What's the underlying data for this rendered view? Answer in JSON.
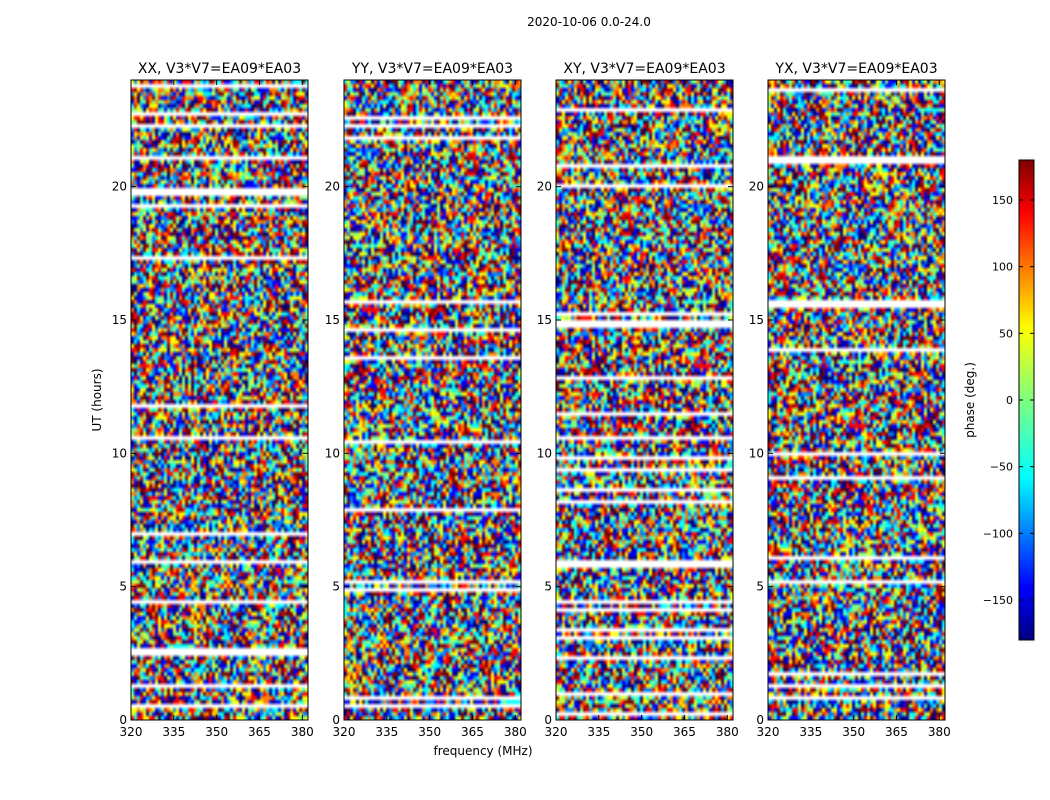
{
  "figure": {
    "suptitle": "2020-10-06 0.0-24.0",
    "xlabel": "frequency (MHz)",
    "ylabel": "UT (hours)"
  },
  "colorbar": {
    "label": "phase (deg.)",
    "ticks": [
      150,
      100,
      50,
      0,
      -50,
      -100,
      -150
    ],
    "tick_labels": [
      "150",
      "100",
      "50",
      "0",
      "−50",
      "−100",
      "−150"
    ],
    "range": [
      -180,
      180
    ],
    "colormap": "jet",
    "colors": [
      "#00007f",
      "#0000ff",
      "#007fff",
      "#00ffff",
      "#7fff7f",
      "#ffff00",
      "#ff7f00",
      "#ff0000",
      "#7f0000"
    ]
  },
  "chart_data": [
    {
      "type": "heatmap",
      "title": "XX, V3*V7=EA09*EA03",
      "x_ticks": [
        320,
        335,
        350,
        365,
        380
      ],
      "y_ticks": [
        0,
        5,
        10,
        15,
        20
      ],
      "xlim": [
        320,
        382
      ],
      "ylim": [
        0,
        24
      ],
      "z_range": [
        -180,
        180
      ]
    },
    {
      "type": "heatmap",
      "title": "YY, V3*V7=EA09*EA03",
      "x_ticks": [
        320,
        335,
        350,
        365,
        380
      ],
      "y_ticks": [
        0,
        5,
        10,
        15,
        20
      ],
      "xlim": [
        320,
        382
      ],
      "ylim": [
        0,
        24
      ],
      "z_range": [
        -180,
        180
      ]
    },
    {
      "type": "heatmap",
      "title": "XY, V3*V7=EA09*EA03",
      "x_ticks": [
        320,
        335,
        350,
        365,
        380
      ],
      "y_ticks": [
        0,
        5,
        10,
        15,
        20
      ],
      "xlim": [
        320,
        382
      ],
      "ylim": [
        0,
        24
      ],
      "z_range": [
        -180,
        180
      ]
    },
    {
      "type": "heatmap",
      "title": "YX, V3*V7=EA09*EA03",
      "x_ticks": [
        320,
        335,
        350,
        365,
        380
      ],
      "y_ticks": [
        0,
        5,
        10,
        15,
        20
      ],
      "xlim": [
        320,
        382
      ],
      "ylim": [
        0,
        24
      ],
      "z_range": [
        -180,
        180
      ]
    }
  ]
}
